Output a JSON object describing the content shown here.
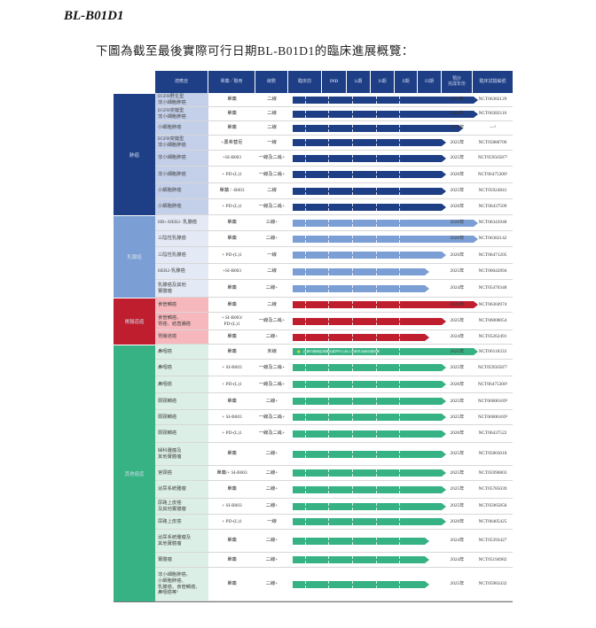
{
  "document": {
    "title": "BL-B01D1",
    "intro": "下圖為截至最後實際可行日期BL-B01D1的臨床進展概覽："
  },
  "table": {
    "headers": {
      "indication": "適應症",
      "regimen": "單藥／聯用",
      "line": "線數",
      "preclinical": "臨床前",
      "ind": "IND",
      "phase_1a": "Ia期",
      "phase_1b": "Ib期",
      "phase_2": "II期",
      "phase_3": "III期",
      "completion_year": "預計\n完成年份",
      "trial_id": "臨床試驗編號"
    },
    "groups": [
      {
        "name": "肺癌",
        "color": "#1e3f86",
        "row_bg": "#c4d0ea"
      },
      {
        "name": "乳腺癌",
        "color": "#7b9fd4",
        "row_bg": "#e3eaf5"
      },
      {
        "name": "胃腸道癌",
        "color": "#be1e2d",
        "row_bg": "#f6b8bc"
      },
      {
        "name": "其他癌症",
        "color": "#36b284",
        "row_bg": "#dcefe6"
      }
    ],
    "rows": [
      {
        "group": 0,
        "indication": "EGFR野生型\n非小細胞肺癌",
        "regimen": "單藥",
        "line": "二線",
        "stage": "III期",
        "year": "2026年",
        "nct": "NCT06382129"
      },
      {
        "group": 0,
        "indication": "EGFR突變型\n非小細胞肺癌",
        "regimen": "單藥",
        "line": "二線",
        "stage": "III期",
        "year": "2026年",
        "nct": "NCT06382116"
      },
      {
        "group": 0,
        "indication": "小細胞肺癌",
        "regimen": "單藥",
        "line": "二線",
        "stage": "III期(啟動)",
        "year": "2026年",
        "nct": "—¹"
      },
      {
        "group": 0,
        "indication": "EGFR突變型\n非小細胞肺癌",
        "regimen": "+奧希替尼",
        "line": "一線",
        "stage": "II期",
        "year": "2025年",
        "nct": "NCT05880706"
      },
      {
        "group": 0,
        "indication": "非小細胞肺癌",
        "regimen": "+SI-B003",
        "line": "一線及二線+",
        "stage": "II期",
        "year": "2025年",
        "nct": "NCT05956587¹"
      },
      {
        "group": 0,
        "indication": "非小細胞肺癌",
        "regimen": "+ PD-(L)1",
        "line": "一線及二線+",
        "stage": "II期",
        "year": "2026年",
        "nct": "NCT06475300¹"
      },
      {
        "group": 0,
        "indication": "小細胞肺癌",
        "regimen": "單藥 / -B003",
        "line": "二線",
        "stage": "II期",
        "year": "2025年",
        "nct": "NCT05924841"
      },
      {
        "group": 0,
        "indication": "小細胞肺癌",
        "regimen": "+ PD-(L)1",
        "line": "一線及二線+",
        "stage": "II期",
        "year": "2026年",
        "nct": "NCT06437509"
      },
      {
        "group": 1,
        "indication": "HR+/HER2- 乳腺癌",
        "regimen": "單藥",
        "line": "三線+",
        "stage": "III期",
        "year": "2026年",
        "nct": "NCT06343948"
      },
      {
        "group": 1,
        "indication": "三陰性乳腺癌",
        "regimen": "單藥",
        "line": "二線+",
        "stage": "III期",
        "year": "2026年",
        "nct": "NCT06382142"
      },
      {
        "group": 1,
        "indication": "三陰性乳腺癌",
        "regimen": "+ PD-(L)1",
        "line": "一線",
        "stage": "II期",
        "year": "2026年",
        "nct": "NCT06471205"
      },
      {
        "group": 1,
        "indication": "HER2-乳腺癌",
        "regimen": "+SI-B003",
        "line": "二線",
        "stage": "Ib期",
        "year": "2025年",
        "nct": "NCT06042894"
      },
      {
        "group": 1,
        "indication": "乳腺癌及其他\n實體瘤",
        "regimen": "單藥",
        "line": "二線+",
        "stage": "Ib期",
        "year": "2024年",
        "nct": "NCT05470348"
      },
      {
        "group": 2,
        "indication": "食管鱗癌",
        "regimen": "單藥",
        "line": "二線",
        "stage": "III期",
        "year": "2026年",
        "nct": "NCT06304974"
      },
      {
        "group": 2,
        "indication": "食管鱗癌、\n胃癌、結直腸癌",
        "regimen": "+ SI-B003/\nPD-(L)1",
        "line": "一線及二線+",
        "stage": "II期",
        "year": "2025年",
        "nct": "NCT06008054"
      },
      {
        "group": 2,
        "indication": "胃腸道癌",
        "regimen": "單藥",
        "line": "二線+",
        "stage": "Ib期",
        "year": "2024年",
        "nct": "NCT05262491"
      },
      {
        "group": 3,
        "indication": "鼻咽癌",
        "regimen": "單藥",
        "line": "末線",
        "stage": "III期",
        "year": "2025年",
        "nct": "NCT06118333",
        "note": "已獲中國藥監局藥品審評中心納入突破性治療品種名單"
      },
      {
        "group": 3,
        "indication": "鼻咽癌",
        "regimen": "+ SI-B003",
        "line": "一線及二線+",
        "stage": "II期",
        "year": "2025年",
        "nct": "NCT05956587¹"
      },
      {
        "group": 3,
        "indication": "鼻咽癌",
        "regimen": "+ PD-(L)1",
        "line": "一線及二線+",
        "stage": "II期",
        "year": "2026年",
        "nct": "NCT06475300¹"
      },
      {
        "group": 3,
        "indication": "頭頸鱗癌",
        "regimen": "單藥",
        "line": "二線+",
        "stage": "II期",
        "year": "2025年",
        "nct": "NCT06006169²"
      },
      {
        "group": 3,
        "indication": "頭頸鱗癌",
        "regimen": "+ SI-B003",
        "line": "一線及二線+",
        "stage": "II期",
        "year": "2025年",
        "nct": "NCT06006169²"
      },
      {
        "group": 3,
        "indication": "頭頸鱗癌",
        "regimen": "+ PD-(L)1",
        "line": "一線及二線+",
        "stage": "II期",
        "year": "2026年",
        "nct": "NCT06437522"
      },
      {
        "group": 3,
        "indication": "婦科腫瘤及\n其他實體瘤",
        "regimen": "單藥",
        "line": "二線+",
        "stage": "II期",
        "year": "2025年",
        "nct": "NCT05803018"
      },
      {
        "group": 3,
        "indication": "宮頸癌",
        "regimen": "單藥/+ SI-B003",
        "line": "二線+",
        "stage": "II期",
        "year": "2025年",
        "nct": "NCT05990803"
      },
      {
        "group": 3,
        "indication": "泌尿系統腫瘤",
        "regimen": "單藥",
        "line": "二線+",
        "stage": "II期",
        "year": "2025年",
        "nct": "NCT05785039"
      },
      {
        "group": 3,
        "indication": "尿路上皮癌\n及其他實體瘤",
        "regimen": "+ SI-B003",
        "line": "二線+",
        "stage": "II期",
        "year": "2025年",
        "nct": "NCT05965856"
      },
      {
        "group": 3,
        "indication": "尿路上皮癌",
        "regimen": "+ PD-(L)1",
        "line": "一線",
        "stage": "II期",
        "year": "2026年",
        "nct": "NCT06405425"
      },
      {
        "group": 3,
        "indication": "泌尿系統腫瘤及\n其他實體瘤",
        "regimen": "單藥",
        "line": "二線+",
        "stage": "Ib期",
        "year": "2024年",
        "nct": "NCT05393427"
      },
      {
        "group": 3,
        "indication": "實體瘤",
        "regimen": "單藥",
        "line": "二線+",
        "stage": "Ib期",
        "year": "2024年",
        "nct": "NCT05194982"
      },
      {
        "group": 3,
        "indication": "非小細胞肺癌、\n小細胞肺癌、\n乳腺癌、食管鱗癌、\n鼻咽癌等¹",
        "regimen": "單藥",
        "line": "二線+",
        "stage": "Ib期",
        "year": "2025年",
        "nct": "NCT05983432"
      }
    ]
  },
  "icons": {
    "breakthrough": "star-icon"
  }
}
